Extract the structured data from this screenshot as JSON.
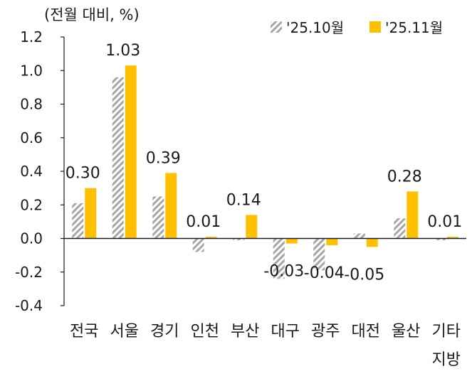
{
  "chart_data": {
    "type": "bar",
    "unit_label": "(전월 대비, %)",
    "categories": [
      "전국",
      "서울",
      "경기",
      "인천",
      "부산",
      "대구",
      "광주",
      "대전",
      "울산",
      "기타 지방"
    ],
    "category_lines": [
      [
        "전국"
      ],
      [
        "서울"
      ],
      [
        "경기"
      ],
      [
        "인천"
      ],
      [
        "부산"
      ],
      [
        "대구"
      ],
      [
        "광주"
      ],
      [
        "대전"
      ],
      [
        "울산"
      ],
      [
        "기타",
        "지방"
      ]
    ],
    "series": [
      {
        "name": "'25.10월",
        "style": "hatched",
        "color": "#a6a6a6",
        "values": [
          0.21,
          0.96,
          0.25,
          -0.08,
          -0.01,
          -0.24,
          -0.19,
          0.03,
          0.12,
          -0.01
        ]
      },
      {
        "name": "'25.11월",
        "style": "solid",
        "color": "#ffc000",
        "values": [
          0.3,
          1.03,
          0.39,
          0.01,
          0.14,
          -0.03,
          -0.04,
          -0.05,
          0.28,
          0.01
        ]
      }
    ],
    "data_labels": [
      "0.30",
      "1.03",
      "0.39",
      "0.01",
      "0.14",
      "-0.03",
      "-0.04",
      "-0.05",
      "0.28",
      "0.01"
    ],
    "y_ticks": [
      "1.2",
      "1.0",
      "0.8",
      "0.6",
      "0.4",
      "0.2",
      "0.0",
      "-0.2",
      "-0.4"
    ],
    "ylim": [
      -0.4,
      1.2
    ],
    "legend_position": "top-right",
    "grid": false
  }
}
